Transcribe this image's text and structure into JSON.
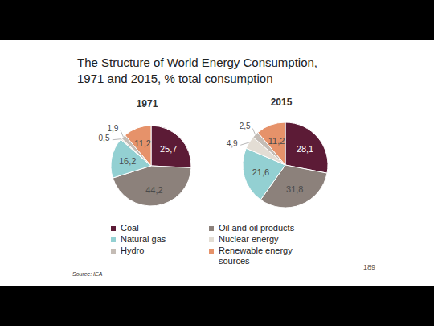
{
  "title": [
    "The Structure of World Energy Consumption,",
    "1971 and 2015, % total consumption"
  ],
  "source": "Source: IEA",
  "page": 189,
  "chart_data": [
    {
      "type": "pie",
      "title": "1971",
      "categories": [
        "Coal",
        "Oil and oil products",
        "Natural gas",
        "Nuclear energy",
        "Hydro",
        "Renewable energy sources"
      ],
      "values": [
        25.7,
        44.2,
        16.2,
        0.5,
        1.9,
        11.2
      ],
      "value_labels": [
        "25,7",
        "44,2",
        "16,2",
        "0,5",
        "1,9",
        "11,2"
      ],
      "colors": [
        "#5c1b36",
        "#8c817b",
        "#93d0d2",
        "#e3ddd4",
        "#c4bcb5",
        "#e6926a"
      ],
      "data_labels": true
    },
    {
      "type": "pie",
      "title": "2015",
      "categories": [
        "Coal",
        "Oil and oil products",
        "Natural gas",
        "Nuclear energy",
        "Hydro",
        "Renewable energy sources"
      ],
      "values": [
        28.1,
        31.8,
        21.6,
        4.9,
        2.5,
        11.2
      ],
      "value_labels": [
        "28,1",
        "31,8",
        "21,6",
        "4,9",
        "2,5",
        "11,2"
      ],
      "colors": [
        "#5c1b36",
        "#8c817b",
        "#93d0d2",
        "#e3ddd4",
        "#c4bcb5",
        "#e6926a"
      ],
      "data_labels": true
    }
  ]
}
